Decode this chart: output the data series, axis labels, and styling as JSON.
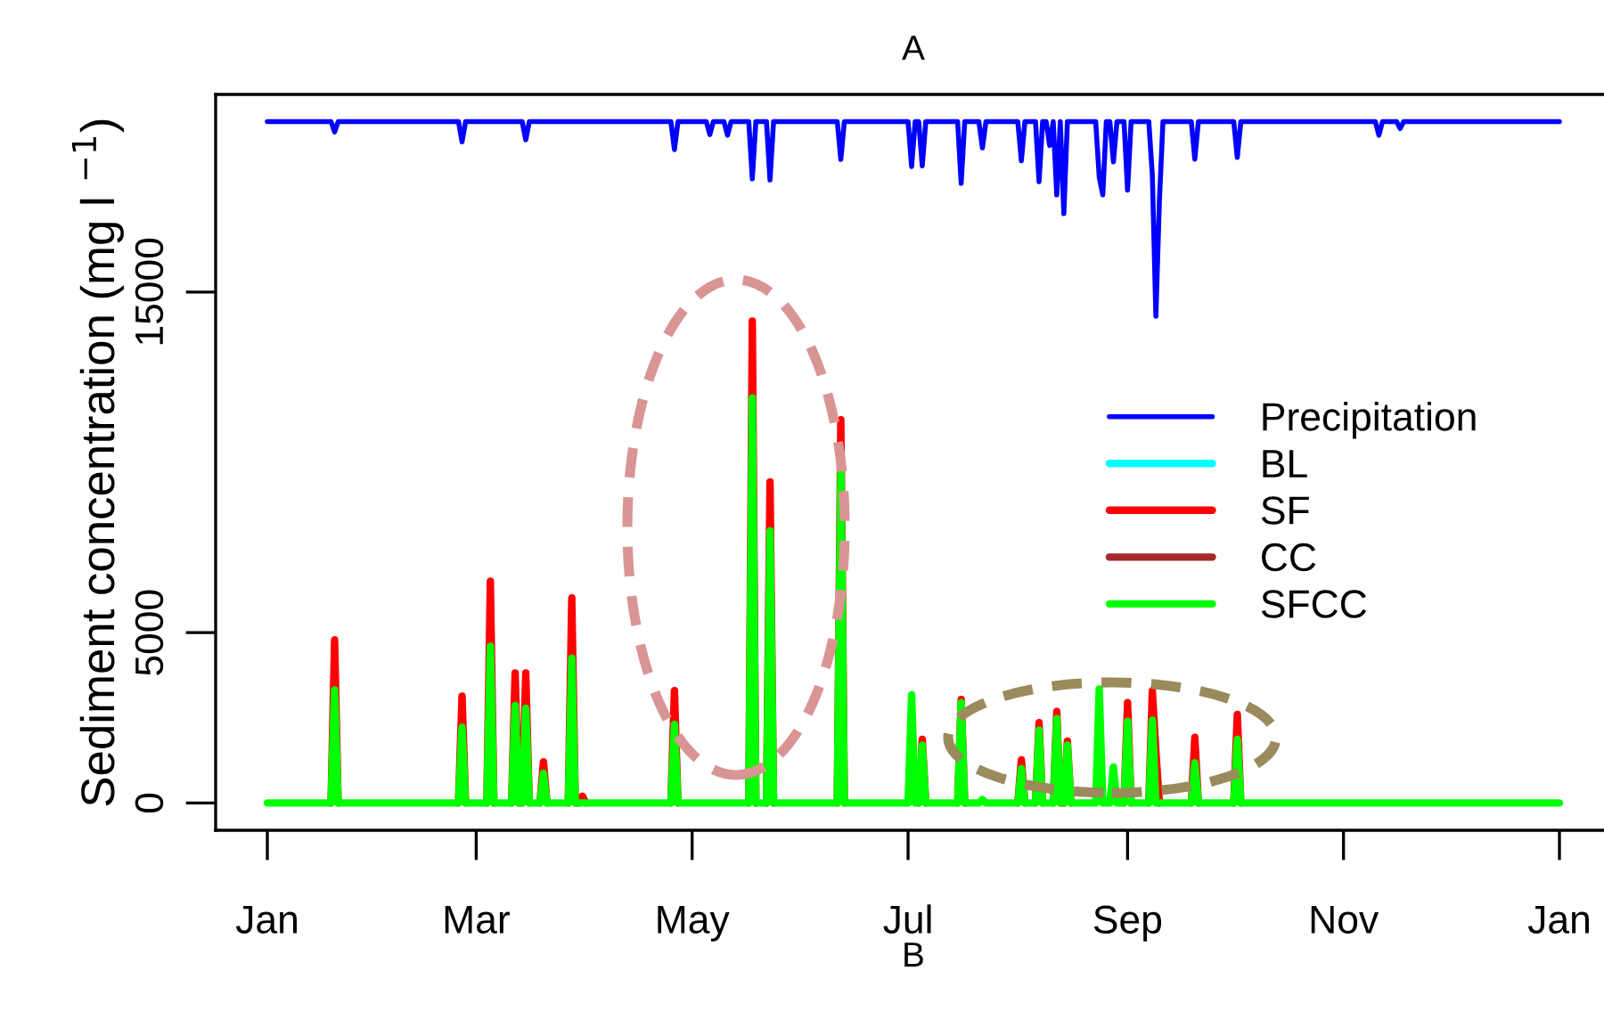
{
  "chart_data": {
    "type": "line",
    "title": "A",
    "xlabel": "B",
    "ylabel": "Sediment concentration (mg l $^{−1}$)",
    "categories": [
      "Jan",
      null,
      null,
      null,
      null,
      null,
      null,
      null,
      null,
      null,
      null,
      null,
      null,
      null,
      null,
      null,
      null,
      null,
      null,
      null,
      null,
      null,
      null,
      null,
      null,
      null,
      null,
      null,
      null,
      null,
      null,
      null,
      null,
      null,
      null,
      null,
      null,
      null,
      null,
      null,
      null,
      null,
      null,
      null,
      null,
      null,
      null,
      null,
      null,
      null,
      null,
      null,
      null,
      null,
      null,
      null,
      null,
      null,
      null,
      "Mar",
      null,
      null,
      null,
      null,
      null,
      null,
      null,
      null,
      null,
      null,
      null,
      null,
      null,
      null,
      null,
      null,
      null,
      null,
      null,
      null,
      null,
      null,
      null,
      null,
      null,
      null,
      null,
      null,
      null,
      null,
      null,
      null,
      null,
      null,
      null,
      null,
      null,
      null,
      null,
      null,
      null,
      null,
      null,
      null,
      null,
      null,
      null,
      null,
      null,
      null,
      null,
      null,
      null,
      null,
      null,
      null,
      null,
      null,
      null,
      null,
      "May",
      null,
      null,
      null,
      null,
      null,
      null,
      null,
      null,
      null,
      null,
      null,
      null,
      null,
      null,
      null,
      null,
      null,
      null,
      null,
      null,
      null,
      null,
      null,
      null,
      null,
      null,
      null,
      null,
      null,
      null,
      null,
      null,
      null,
      null,
      null,
      null,
      null,
      null,
      null,
      null,
      null,
      null,
      null,
      null,
      null,
      null,
      null,
      null,
      null,
      null,
      null,
      null,
      null,
      null,
      null,
      null,
      null,
      null,
      null,
      null,
      "Jul",
      null,
      null,
      null,
      null,
      null,
      null,
      null,
      null,
      null,
      null,
      null,
      null,
      null,
      null,
      null,
      null,
      null,
      null,
      null,
      null,
      null,
      null,
      null,
      null,
      null,
      null,
      null,
      null,
      null,
      null,
      null,
      null,
      null,
      null,
      null,
      null,
      null,
      null,
      null,
      null,
      null,
      null,
      null,
      null,
      null,
      null,
      null,
      null,
      null,
      null,
      null,
      null,
      null,
      null,
      null,
      null,
      null,
      null,
      null,
      null,
      null,
      "Sep",
      null,
      null,
      null,
      null,
      null,
      null,
      null,
      null,
      null,
      null,
      null,
      null,
      null,
      null,
      null,
      null,
      null,
      null,
      null,
      null,
      null,
      null,
      null,
      null,
      null,
      null,
      null,
      null,
      null,
      null,
      null,
      null,
      null,
      null,
      null,
      null,
      null,
      null,
      null,
      null,
      null,
      null,
      null,
      null,
      null,
      null,
      null,
      null,
      null,
      null,
      null,
      null,
      null,
      null,
      null,
      null,
      null,
      null,
      null,
      null,
      "Nov",
      null,
      null,
      null,
      null,
      null,
      null,
      null,
      null,
      null,
      null,
      null,
      null,
      null,
      null,
      null,
      null,
      null,
      null,
      null,
      null,
      null,
      null,
      null,
      null,
      null,
      null,
      null,
      null,
      null,
      null,
      null,
      null,
      null,
      null,
      null,
      null,
      null,
      null,
      null,
      null,
      null,
      null,
      null,
      null,
      null,
      null,
      null,
      null,
      null,
      null,
      null,
      null,
      null,
      null,
      null,
      null,
      null,
      null,
      null,
      null,
      "Jan"
    ],
    "ylim": [
      -800,
      20800
    ],
    "yticks": [
      0,
      5000,
      15000
    ],
    "legend": "right",
    "series": [
      {
        "name": "Precipitation",
        "color": "#0000ff",
        "values": [
          20000,
          20000,
          20000,
          20000,
          20000,
          20000,
          20000,
          20000,
          20000,
          20000,
          20000,
          20000,
          20000,
          20000,
          20000,
          20000,
          20000,
          20000,
          20000,
          19700,
          20000,
          20000,
          20000,
          20000,
          20000,
          20000,
          20000,
          20000,
          20000,
          20000,
          20000,
          20000,
          20000,
          20000,
          20000,
          20000,
          20000,
          20000,
          20000,
          20000,
          20000,
          20000,
          20000,
          20000,
          20000,
          20000,
          20000,
          20000,
          20000,
          20000,
          20000,
          20000,
          20000,
          20000,
          20000,
          19410,
          20000,
          20000,
          20000,
          20000,
          20000,
          20000,
          20000,
          20000,
          20000,
          20000,
          20000,
          20000,
          20000,
          20000,
          20000,
          20000,
          20000,
          19470,
          20000,
          20000,
          20000,
          20000,
          20000,
          20000,
          20000,
          20000,
          20000,
          20000,
          20000,
          20000,
          20000,
          20000,
          20000,
          20000,
          20000,
          20000,
          20000,
          20000,
          20000,
          20000,
          20000,
          20000,
          20000,
          20000,
          20000,
          20000,
          20000,
          20000,
          20000,
          20000,
          20000,
          20000,
          20000,
          20000,
          20000,
          20000,
          20000,
          20000,
          20000,
          19180,
          20000,
          20000,
          20000,
          20000,
          20000,
          20000,
          20000,
          20000,
          20000,
          19620,
          20000,
          20000,
          20000,
          20000,
          19600,
          20000,
          20000,
          20000,
          20000,
          20000,
          20000,
          18320,
          20000,
          20000,
          20000,
          20000,
          18290,
          20000,
          20000,
          20000,
          20000,
          20000,
          20000,
          20000,
          20000,
          20000,
          20000,
          20000,
          20000,
          20000,
          20000,
          20000,
          20000,
          20000,
          20000,
          20000,
          18890,
          20000,
          20000,
          20000,
          20000,
          20000,
          20000,
          20000,
          20000,
          20000,
          20000,
          20000,
          20000,
          20000,
          20000,
          20000,
          20000,
          20000,
          20000,
          20000,
          18680,
          20000,
          20000,
          18700,
          20000,
          20000,
          20000,
          20000,
          20000,
          20000,
          20000,
          20000,
          20000,
          20000,
          18190,
          20000,
          20000,
          20000,
          20000,
          20000,
          19230,
          20000,
          20000,
          20000,
          20000,
          20000,
          20000,
          20000,
          20000,
          20000,
          20000,
          18850,
          20000,
          20000,
          20000,
          20000,
          18240,
          20000,
          20000,
          19300,
          20000,
          17850,
          20000,
          17300,
          20000,
          20000,
          20000,
          20000,
          20000,
          20000,
          20000,
          20000,
          20000,
          18370,
          17850,
          20000,
          20000,
          18820,
          20000,
          20000,
          20000,
          17990,
          20000,
          20000,
          20000,
          20000,
          20000,
          20000,
          18430,
          14290,
          17690,
          20000,
          20000,
          20000,
          20000,
          20000,
          20000,
          20000,
          20000,
          20000,
          18900,
          20000,
          20000,
          20000,
          20000,
          20000,
          20000,
          20000,
          20000,
          20000,
          20000,
          20000,
          18950,
          20000,
          20000,
          20000,
          20000,
          20000,
          20000,
          20000,
          20000,
          20000,
          20000,
          20000,
          20000,
          20000,
          20000,
          20000,
          20000,
          20000,
          20000,
          20000,
          20000,
          20000,
          20000,
          20000,
          20000,
          20000,
          20000,
          20000,
          20000,
          20000,
          20000,
          20000,
          20000,
          20000,
          20000,
          20000,
          20000,
          20000,
          20000,
          20000,
          19600,
          20000,
          20000,
          20000,
          20000,
          20000,
          19800,
          20000,
          20000,
          20000,
          20000,
          20000,
          20000,
          20000,
          20000,
          20000,
          20000,
          20000,
          20000,
          20000,
          20000,
          20000,
          20000,
          20000,
          20000,
          20000,
          20000,
          20000,
          20000,
          20000,
          20000,
          20000,
          20000,
          20000,
          20000,
          20000,
          20000,
          20000,
          20000,
          20000,
          20000,
          20000,
          20000,
          20000,
          20000,
          20000,
          20000,
          20000,
          20000,
          20000,
          20000,
          20000
        ]
      },
      {
        "name": "BL",
        "color": "#00ffff",
        "values": [
          null,
          null,
          null,
          null,
          null,
          null,
          null,
          null,
          null,
          null,
          null,
          null,
          null,
          null,
          null,
          null,
          null,
          null,
          null,
          null,
          null,
          null,
          null,
          null,
          null,
          null,
          null,
          null,
          null,
          null,
          null,
          null,
          null,
          null,
          null,
          null,
          null,
          null,
          null,
          null,
          null,
          null,
          null,
          null,
          null,
          null,
          null,
          null,
          null,
          null,
          null,
          null,
          null,
          null,
          null,
          null,
          null,
          null,
          null,
          null,
          null,
          null,
          null,
          null,
          null,
          null,
          null,
          null,
          null,
          null,
          null,
          null,
          null,
          null,
          null,
          null,
          null,
          null,
          null,
          null,
          null,
          null,
          null,
          null,
          null,
          null,
          null,
          null,
          null,
          null,
          null,
          null,
          null,
          null,
          null,
          null,
          null,
          null,
          null,
          null,
          null,
          null,
          null,
          null,
          null,
          null,
          null,
          null,
          null,
          null,
          null,
          null,
          null,
          null,
          null,
          null,
          null,
          null,
          null,
          null,
          null,
          null,
          null,
          null,
          null,
          null,
          null,
          null,
          null,
          null,
          null,
          null,
          null,
          null,
          null,
          null,
          null,
          null,
          null,
          null,
          null,
          null,
          null,
          null,
          null,
          null,
          null,
          null,
          null,
          null,
          null,
          null,
          null,
          null,
          null,
          null,
          null,
          null,
          null,
          null,
          null,
          null,
          null,
          null,
          null,
          null,
          null,
          null,
          null,
          null,
          null,
          null,
          null,
          null,
          null,
          null,
          null,
          null,
          null,
          null,
          null,
          null,
          null,
          null,
          null,
          null,
          null,
          null,
          null,
          null,
          null,
          null,
          null,
          null,
          null,
          null,
          null,
          null,
          null,
          null,
          null,
          null,
          null,
          null,
          null,
          null,
          null,
          null,
          null,
          null,
          null,
          null,
          null,
          null,
          null,
          null,
          null,
          null,
          null,
          null,
          null,
          null,
          null,
          null,
          null,
          null,
          null,
          null,
          null,
          null,
          null,
          null,
          null,
          null,
          null,
          null,
          null,
          null,
          null,
          null,
          null,
          null,
          null,
          null,
          null,
          null,
          null,
          null,
          null,
          null,
          null,
          null,
          null,
          null,
          null,
          null,
          null,
          null,
          null,
          null,
          null,
          null,
          null,
          null,
          null,
          null,
          null,
          null,
          null,
          null,
          null,
          null,
          null,
          null,
          null,
          null,
          null,
          null,
          null,
          null,
          null,
          null,
          null,
          null,
          null,
          null,
          null,
          null,
          null,
          null,
          null,
          null,
          null,
          null,
          null,
          null,
          null,
          null,
          null,
          null,
          null,
          null,
          null,
          null,
          null,
          null,
          null,
          null,
          null,
          null,
          null,
          null,
          null,
          null,
          null,
          null,
          null,
          null,
          null,
          null,
          null,
          null,
          null,
          null,
          null,
          null,
          null,
          null,
          null,
          null,
          null,
          null,
          null,
          null,
          null,
          null,
          null,
          null,
          null,
          null,
          null,
          null,
          null,
          null,
          null,
          null,
          null,
          null,
          null,
          null,
          null,
          null,
          null,
          null,
          null,
          null,
          null,
          null,
          null,
          null,
          null,
          null,
          null,
          null,
          null,
          null
        ]
      },
      {
        "name": "SF",
        "color": "#ff0000",
        "values": [
          null,
          null,
          null,
          null,
          null,
          null,
          null,
          null,
          null,
          null,
          null,
          null,
          null,
          null,
          null,
          null,
          null,
          null,
          0,
          4790,
          0,
          null,
          null,
          null,
          null,
          null,
          null,
          null,
          null,
          null,
          null,
          null,
          null,
          null,
          null,
          null,
          null,
          null,
          null,
          null,
          null,
          null,
          null,
          null,
          null,
          null,
          null,
          null,
          null,
          null,
          null,
          null,
          null,
          null,
          0,
          3140,
          0,
          null,
          null,
          null,
          null,
          null,
          0,
          6510,
          0,
          null,
          null,
          null,
          null,
          0,
          3820,
          0,
          0,
          3820,
          0,
          null,
          null,
          0,
          1210,
          0,
          null,
          null,
          null,
          null,
          null,
          0,
          6020,
          0,
          0,
          200,
          0,
          null,
          null,
          null,
          null,
          null,
          null,
          null,
          null,
          null,
          null,
          null,
          null,
          null,
          null,
          null,
          null,
          null,
          null,
          null,
          null,
          null,
          null,
          null,
          0,
          3300,
          0,
          null,
          null,
          null,
          null,
          null,
          null,
          null,
          null,
          null,
          null,
          null,
          null,
          null,
          null,
          null,
          null,
          null,
          null,
          null,
          0,
          14150,
          0,
          null,
          null,
          0,
          9430,
          0,
          null,
          null,
          null,
          null,
          null,
          null,
          null,
          null,
          null,
          null,
          null,
          null,
          null,
          null,
          null,
          null,
          null,
          0,
          11250,
          0,
          null,
          null,
          null,
          null,
          null,
          null,
          null,
          null,
          null,
          null,
          null,
          null,
          null,
          null,
          null,
          null,
          null,
          null,
          null,
          null,
          0,
          1870,
          0,
          null,
          null,
          null,
          null,
          null,
          null,
          null,
          null,
          0,
          3040,
          0,
          null,
          null,
          null,
          null,
          null,
          null,
          null,
          null,
          null,
          null,
          null,
          null,
          null,
          null,
          0,
          1270,
          0,
          null,
          null,
          0,
          2360,
          0,
          null,
          null,
          0,
          2690,
          0,
          0,
          1820,
          0,
          null,
          null,
          null,
          null,
          null,
          null,
          null,
          null,
          null,
          null,
          null,
          null,
          null,
          null,
          0,
          2950,
          0,
          null,
          null,
          null,
          null,
          0,
          3300,
          1500,
          0,
          null,
          null,
          null,
          null,
          null,
          null,
          null,
          null,
          0,
          1930,
          0,
          null,
          null,
          null,
          null,
          null,
          null,
          null,
          null,
          null,
          0,
          2600,
          0,
          null,
          null,
          null,
          null,
          null,
          null,
          null,
          null,
          null,
          null,
          null,
          null,
          null,
          null,
          null,
          null,
          null,
          null,
          null,
          null,
          null,
          null,
          null,
          null,
          null,
          null,
          null,
          null,
          null,
          null,
          null,
          null,
          null,
          null,
          null,
          null,
          null,
          null,
          null,
          null,
          null,
          null,
          null,
          null,
          null,
          null,
          null,
          null,
          null,
          null,
          null,
          null,
          null,
          null,
          null,
          null,
          null,
          null,
          null,
          null,
          null,
          null,
          null,
          null,
          null,
          null,
          null,
          null,
          null,
          null,
          null,
          null,
          null,
          null,
          null,
          null,
          null,
          null,
          null,
          null,
          null,
          null,
          null,
          null,
          null,
          null,
          null,
          null,
          null,
          null
        ]
      },
      {
        "name": "CC",
        "color": "#a52a2a",
        "values": [
          null,
          null,
          null,
          null,
          null,
          null,
          null,
          null,
          null,
          null,
          null,
          null,
          null,
          null,
          null,
          null,
          null,
          null,
          null,
          null,
          null,
          null,
          null,
          null,
          null,
          null,
          null,
          null,
          null,
          null,
          null,
          null,
          null,
          null,
          null,
          null,
          null,
          null,
          null,
          null,
          null,
          null,
          null,
          null,
          null,
          null,
          null,
          null,
          null,
          null,
          null,
          null,
          null,
          null,
          null,
          null,
          null,
          null,
          null,
          null,
          null,
          null,
          null,
          null,
          null,
          null,
          null,
          null,
          null,
          null,
          null,
          null,
          null,
          null,
          null,
          null,
          null,
          null,
          null,
          null,
          null,
          null,
          null,
          null,
          null,
          null,
          null,
          null,
          null,
          null,
          null,
          null,
          null,
          null,
          null,
          null,
          null,
          null,
          null,
          null,
          null,
          null,
          null,
          null,
          null,
          null,
          null,
          null,
          null,
          null,
          null,
          null,
          null,
          null,
          null,
          null,
          null,
          null,
          null,
          null,
          null,
          null,
          null,
          null,
          null,
          null,
          null,
          null,
          null,
          null,
          null,
          null,
          null,
          null,
          null,
          null,
          null,
          null,
          null,
          null,
          null,
          null,
          null,
          null,
          null,
          null,
          null,
          null,
          null,
          null,
          null,
          null,
          null,
          null,
          null,
          null,
          null,
          null,
          null,
          null,
          null,
          null,
          null,
          null,
          null,
          null,
          null,
          null,
          null,
          null,
          null,
          null,
          null,
          null,
          null,
          null,
          null,
          null,
          null,
          null,
          null,
          null,
          null,
          null,
          null,
          null,
          null,
          null,
          null,
          null,
          null,
          null,
          null,
          null,
          null,
          null,
          null,
          null,
          null,
          null,
          null,
          null,
          null,
          null,
          null,
          null,
          null,
          null,
          null,
          null,
          null,
          null,
          null,
          null,
          null,
          null,
          null,
          null,
          null,
          null,
          null,
          null,
          null,
          null,
          null,
          null,
          null,
          null,
          null,
          null,
          null,
          null,
          null,
          null,
          null,
          null,
          null,
          null,
          null,
          null,
          null,
          null,
          null,
          null,
          null,
          null,
          null,
          null,
          null,
          null,
          null,
          null,
          null,
          null,
          null,
          null,
          null,
          null,
          null,
          null,
          null,
          null,
          null,
          null,
          null,
          null,
          null,
          null,
          null,
          null,
          null,
          null,
          null,
          null,
          null,
          null,
          null,
          null,
          null,
          null,
          null,
          null,
          null,
          null,
          null,
          null,
          null,
          null,
          null,
          null,
          null,
          null,
          null,
          null,
          null,
          null,
          null,
          null,
          null,
          null,
          null,
          null,
          null,
          null,
          null,
          null,
          null,
          null,
          null,
          null,
          null,
          null,
          null,
          null,
          null,
          null,
          null,
          null,
          null,
          null,
          null,
          null,
          null,
          null,
          null,
          null,
          null,
          null,
          null,
          null,
          null,
          null,
          null,
          null,
          null,
          null,
          null,
          null,
          null,
          null,
          null,
          null,
          null,
          null,
          null,
          null,
          null,
          null,
          null,
          null,
          null,
          null,
          null,
          null,
          null,
          null,
          null,
          null,
          null,
          null,
          null,
          null,
          null,
          null,
          null,
          null
        ]
      },
      {
        "name": "SFCC",
        "color": "#00ff00",
        "values": [
          0,
          0,
          0,
          0,
          0,
          0,
          0,
          0,
          0,
          0,
          0,
          0,
          0,
          0,
          0,
          0,
          0,
          0,
          0,
          3320,
          0,
          0,
          0,
          0,
          0,
          0,
          0,
          0,
          0,
          0,
          0,
          0,
          0,
          0,
          0,
          0,
          0,
          0,
          0,
          0,
          0,
          0,
          0,
          0,
          0,
          0,
          0,
          0,
          0,
          0,
          0,
          0,
          0,
          0,
          0,
          2220,
          0,
          0,
          0,
          0,
          0,
          0,
          0,
          4600,
          0,
          0,
          0,
          0,
          0,
          0,
          2860,
          0,
          0,
          2780,
          0,
          0,
          0,
          0,
          870,
          0,
          0,
          0,
          0,
          0,
          0,
          0,
          4250,
          0,
          0,
          0,
          0,
          0,
          0,
          0,
          0,
          0,
          0,
          0,
          0,
          0,
          0,
          0,
          0,
          0,
          0,
          0,
          0,
          0,
          0,
          0,
          0,
          0,
          0,
          0,
          0,
          2310,
          0,
          0,
          0,
          0,
          0,
          0,
          0,
          0,
          0,
          0,
          0,
          0,
          0,
          0,
          0,
          0,
          0,
          0,
          0,
          0,
          0,
          11890,
          0,
          0,
          0,
          0,
          7990,
          0,
          0,
          0,
          0,
          0,
          0,
          0,
          0,
          0,
          0,
          0,
          0,
          0,
          0,
          0,
          0,
          0,
          0,
          0,
          9900,
          0,
          0,
          0,
          0,
          0,
          0,
          0,
          0,
          0,
          0,
          0,
          0,
          0,
          0,
          0,
          0,
          0,
          0,
          0,
          3180,
          0,
          0,
          1700,
          0,
          0,
          0,
          0,
          0,
          0,
          0,
          0,
          0,
          0,
          2950,
          0,
          0,
          0,
          0,
          0,
          100,
          0,
          0,
          0,
          0,
          0,
          0,
          0,
          0,
          0,
          0,
          1010,
          0,
          0,
          0,
          0,
          2140,
          0,
          0,
          0,
          0,
          2480,
          0,
          0,
          1700,
          0,
          0,
          0,
          0,
          0,
          0,
          0,
          0,
          3350,
          0,
          0,
          0,
          1060,
          0,
          0,
          0,
          2400,
          0,
          0,
          0,
          0,
          0,
          0,
          2430,
          0,
          0,
          0,
          0,
          0,
          0,
          0,
          0,
          0,
          0,
          0,
          1180,
          0,
          0,
          0,
          0,
          0,
          0,
          0,
          0,
          0,
          0,
          0,
          1870,
          0,
          0,
          0,
          0,
          0,
          0,
          0,
          0,
          0,
          0,
          0,
          0,
          0,
          0,
          0,
          0,
          0,
          0,
          0,
          0,
          0,
          0,
          0,
          0,
          0,
          0,
          0,
          0,
          0,
          0,
          0,
          0,
          0,
          0,
          0,
          0,
          0,
          0,
          0,
          0,
          0,
          0,
          0,
          0,
          0,
          0,
          0,
          0,
          0,
          0,
          0,
          0,
          0,
          0,
          0,
          0,
          0,
          0,
          0,
          0,
          0,
          0,
          0,
          0,
          0,
          0,
          0,
          0,
          0,
          0,
          0,
          0,
          0,
          0,
          0,
          0,
          0,
          0,
          0,
          0,
          0,
          0,
          0,
          0,
          0,
          0,
          0,
          0,
          0,
          0,
          0
        ]
      }
    ]
  }
}
